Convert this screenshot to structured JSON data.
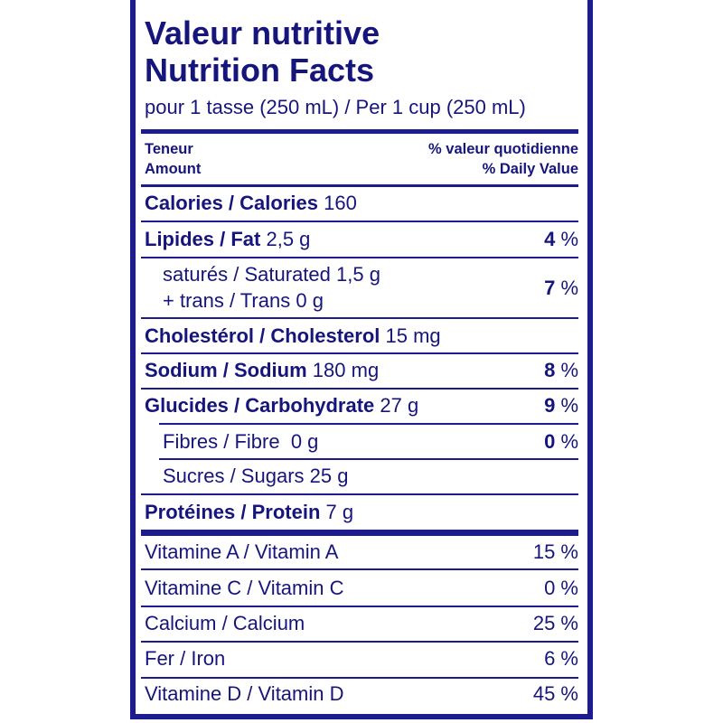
{
  "title_fr": "Valeur nutritive",
  "title_en": "Nutrition Facts",
  "serving": "pour 1 tasse (250 mL) / Per 1 cup (250 mL)",
  "header": {
    "amount_fr": "Teneur",
    "amount_en": "Amount",
    "dv_fr": "% valeur quotidienne",
    "dv_en": "% Daily Value"
  },
  "nutrients": [
    {
      "label": "Calories / Calories",
      "amount": "160",
      "dv": ""
    },
    {
      "label": "Lipides / Fat",
      "amount": "2,5 g",
      "dv": "4"
    },
    {
      "label": "saturés / Saturated",
      "amount": "1,5 g",
      "label2": "+ trans / Trans",
      "amount2": "0 g",
      "dv": "7"
    },
    {
      "label": "Cholestérol / Cholesterol",
      "amount": "15 mg",
      "dv": ""
    },
    {
      "label": "Sodium / Sodium",
      "amount": "180 mg",
      "dv": "8"
    },
    {
      "label": "Glucides / Carbohydrate",
      "amount": "27 g",
      "dv": "9"
    },
    {
      "label": "Fibres / Fibre",
      "amount": "0 g",
      "dv": "0"
    },
    {
      "label": "Sucres / Sugars",
      "amount": "25 g",
      "dv": ""
    },
    {
      "label": "Protéines / Protein",
      "amount": "7 g",
      "dv": ""
    }
  ],
  "percent_sign": "%",
  "vitamins": [
    {
      "label": "Vitamine A / Vitamin A",
      "dv": "15 %"
    },
    {
      "label": "Vitamine C / Vitamin C",
      "dv": "0 %"
    },
    {
      "label": "Calcium / Calcium",
      "dv": "25 %"
    },
    {
      "label": "Fer / Iron",
      "dv": "6 %"
    },
    {
      "label": "Vitamine D / Vitamin D",
      "dv": "45 %"
    }
  ],
  "colors": {
    "ink": "#16157c",
    "rule": "#1c1c8f"
  }
}
